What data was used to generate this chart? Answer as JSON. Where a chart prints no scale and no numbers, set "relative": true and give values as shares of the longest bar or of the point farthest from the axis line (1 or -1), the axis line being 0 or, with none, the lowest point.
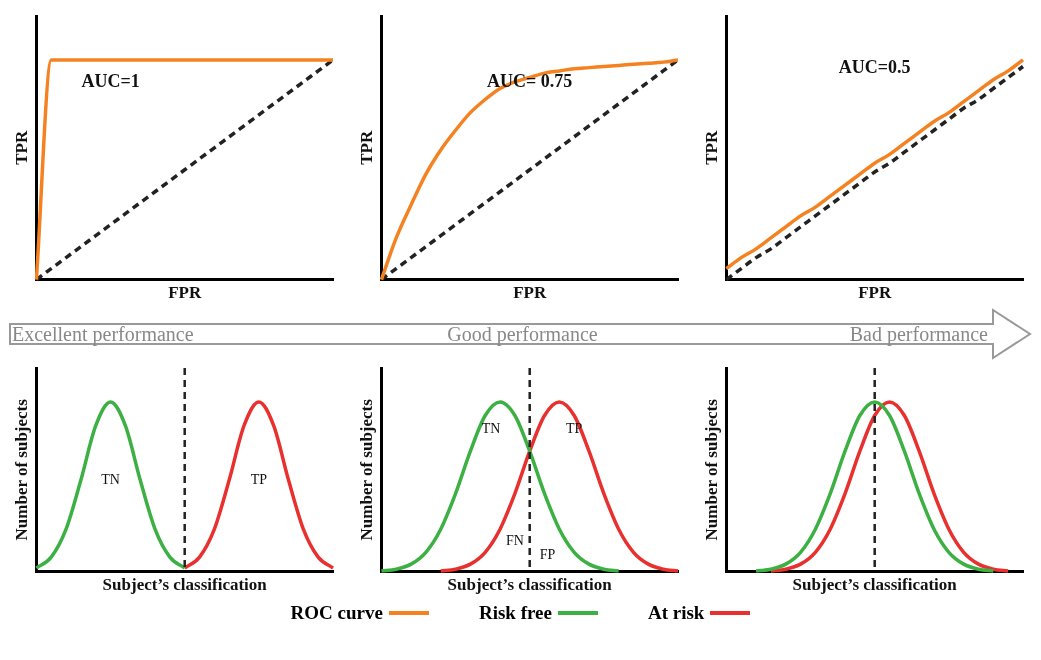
{
  "chart_data": [
    {
      "type": "line",
      "relative": true,
      "xlabel": "FPR",
      "ylabel": "TPR",
      "tick_labels": false,
      "marker": "none",
      "legend": "bottom",
      "annotations": [
        "AUC=1"
      ],
      "categories": [
        null,
        null,
        null,
        null,
        null,
        null,
        null,
        null,
        null,
        null,
        null,
        null,
        null,
        null,
        null,
        null,
        null,
        null,
        null,
        null,
        null
      ],
      "series": [
        {
          "name": "ROC curve",
          "color": "#f58220",
          "values": [
            0,
            1,
            1,
            1,
            1,
            1,
            1,
            1,
            1,
            1,
            1,
            1,
            1,
            1,
            1,
            1,
            1,
            1,
            1,
            1,
            1
          ]
        },
        {
          "color": "#222222",
          "line_style": "dashed",
          "values": [
            0,
            0.05,
            0.1,
            0.15,
            0.2,
            0.25,
            0.3,
            0.35,
            0.4,
            0.45,
            0.5,
            0.55,
            0.6,
            0.65,
            0.7,
            0.75,
            0.8,
            0.85,
            0.9,
            0.95,
            1
          ]
        }
      ]
    },
    {
      "type": "line",
      "relative": true,
      "xlabel": "FPR",
      "ylabel": "TPR",
      "tick_labels": false,
      "marker": "none",
      "legend": "bottom",
      "annotations": [
        "AUC= 0.75"
      ],
      "categories": [
        null,
        null,
        null,
        null,
        null,
        null,
        null,
        null,
        null,
        null,
        null,
        null,
        null,
        null,
        null,
        null,
        null,
        null,
        null,
        null,
        null
      ],
      "series": [
        {
          "name": "ROC curve",
          "color": "#f58220",
          "values": [
            0,
            0.19,
            0.34,
            0.48,
            0.59,
            0.68,
            0.76,
            0.82,
            0.87,
            0.9,
            0.92,
            0.94,
            0.95,
            0.96,
            0.965,
            0.97,
            0.975,
            0.98,
            0.985,
            0.99,
            1
          ]
        },
        {
          "color": "#222222",
          "line_style": "dashed",
          "values": [
            0,
            0.05,
            0.1,
            0.15,
            0.2,
            0.25,
            0.3,
            0.35,
            0.4,
            0.45,
            0.5,
            0.55,
            0.6,
            0.65,
            0.7,
            0.75,
            0.8,
            0.85,
            0.9,
            0.95,
            1
          ]
        }
      ]
    },
    {
      "type": "line",
      "relative": true,
      "xlabel": "FPR",
      "ylabel": "TPR",
      "tick_labels": false,
      "marker": "none",
      "legend": "bottom",
      "annotations": [
        "AUC=0.5"
      ],
      "categories": [
        null,
        null,
        null,
        null,
        null,
        null,
        null,
        null,
        null,
        null,
        null,
        null,
        null,
        null,
        null,
        null,
        null,
        null,
        null,
        null,
        null
      ],
      "series": [
        {
          "name": "ROC curve",
          "color": "#f58220",
          "values": [
            0.05,
            0.1,
            0.14,
            0.19,
            0.24,
            0.29,
            0.33,
            0.38,
            0.43,
            0.48,
            0.53,
            0.57,
            0.62,
            0.67,
            0.72,
            0.76,
            0.81,
            0.86,
            0.91,
            0.95,
            1
          ]
        },
        {
          "color": "#222222",
          "line_style": "dashed",
          "values": [
            0,
            0.05,
            0.1,
            0.14,
            0.19,
            0.24,
            0.29,
            0.34,
            0.39,
            0.44,
            0.49,
            0.53,
            0.58,
            0.63,
            0.68,
            0.73,
            0.78,
            0.82,
            0.87,
            0.92,
            0.97
          ]
        }
      ]
    },
    {
      "type": "line",
      "relative": true,
      "title": "Excellent performance",
      "xlabel": "Subject’s classification",
      "ylabel": "Number of subjects",
      "tick_labels": false,
      "marker": "none",
      "legend": "bottom",
      "annotations": [
        "TN",
        "TP"
      ],
      "categories": [
        null,
        null,
        null,
        null,
        null,
        null,
        null,
        null,
        null,
        null,
        null,
        null,
        null,
        null,
        null,
        null,
        null,
        null,
        null,
        null,
        null
      ],
      "series": [
        {
          "name": "Risk free",
          "color": "#3cb043",
          "values": [
            0.021,
            0.085,
            0.25,
            0.54,
            0.86,
            1,
            0.86,
            0.54,
            0.25,
            0.085,
            0.021,
            null,
            null,
            null,
            null,
            null,
            null,
            null,
            null,
            null,
            null
          ]
        },
        {
          "name": "At risk",
          "color": "#e8312f",
          "values": [
            null,
            null,
            null,
            null,
            null,
            null,
            null,
            null,
            null,
            null,
            0.021,
            0.085,
            0.25,
            0.54,
            0.86,
            1,
            0.86,
            0.54,
            0.25,
            0.085,
            0.021
          ]
        }
      ]
    },
    {
      "type": "line",
      "relative": true,
      "title": "Good performance",
      "xlabel": "Subject’s classification",
      "ylabel": "Number of subjects",
      "tick_labels": false,
      "marker": "none",
      "legend": "bottom",
      "annotations": [
        "TN",
        "FN",
        "FP",
        "TP"
      ],
      "categories": [
        null,
        null,
        null,
        null,
        null,
        null,
        null,
        null,
        null,
        null,
        null,
        null,
        null,
        null,
        null,
        null,
        null,
        null,
        null,
        null,
        null
      ],
      "series": [
        {
          "name": "Risk free",
          "color": "#3cb043",
          "values": [
            0.004,
            0.014,
            0.044,
            0.114,
            0.25,
            0.46,
            0.71,
            0.92,
            1,
            0.92,
            0.71,
            0.46,
            0.25,
            0.114,
            0.044,
            0.014,
            0.004,
            null,
            null,
            null,
            null
          ]
        },
        {
          "name": "At risk",
          "color": "#e8312f",
          "values": [
            null,
            null,
            null,
            null,
            0.004,
            0.014,
            0.044,
            0.114,
            0.25,
            0.46,
            0.71,
            0.92,
            1,
            0.92,
            0.71,
            0.46,
            0.25,
            0.114,
            0.044,
            0.014,
            0.004
          ]
        }
      ]
    },
    {
      "type": "line",
      "relative": true,
      "title": "Bad performance",
      "xlabel": "Subject’s classification",
      "ylabel": "Number of subjects",
      "tick_labels": false,
      "marker": "none",
      "legend": "bottom",
      "categories": [
        null,
        null,
        null,
        null,
        null,
        null,
        null,
        null,
        null,
        null,
        null,
        null,
        null,
        null,
        null,
        null,
        null,
        null,
        null,
        null,
        null
      ],
      "series": [
        {
          "name": "Risk free",
          "color": "#3cb043",
          "values": [
            null,
            null,
            0.004,
            0.014,
            0.044,
            0.114,
            0.25,
            0.46,
            0.71,
            0.92,
            1,
            0.92,
            0.71,
            0.46,
            0.25,
            0.114,
            0.044,
            0.014,
            0.004,
            null,
            null
          ]
        },
        {
          "name": "At risk",
          "color": "#e8312f",
          "values": [
            null,
            null,
            null,
            0.004,
            0.014,
            0.044,
            0.114,
            0.25,
            0.46,
            0.71,
            0.92,
            1,
            0.92,
            0.71,
            0.46,
            0.25,
            0.114,
            0.044,
            0.014,
            0.004,
            null
          ]
        }
      ]
    }
  ]
}
